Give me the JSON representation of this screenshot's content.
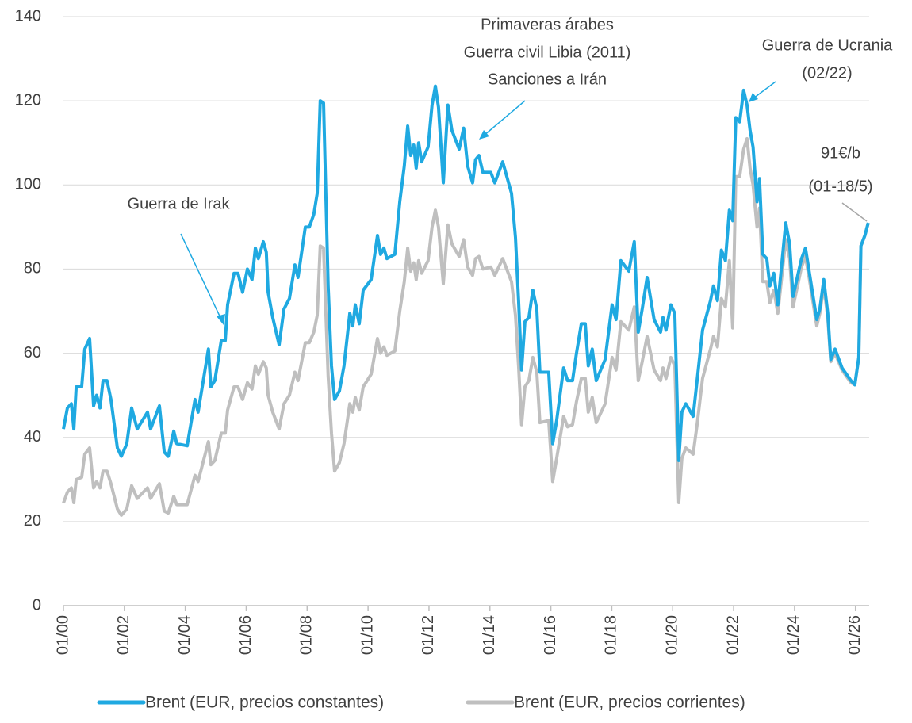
{
  "chart_data": {
    "type": "line",
    "x": [
      2000.0,
      2000.13,
      2000.26,
      2000.34,
      2000.42,
      2000.6,
      2000.7,
      2000.86,
      2000.99,
      2001.09,
      2001.2,
      2001.3,
      2001.43,
      2001.56,
      2001.77,
      2001.9,
      2002.08,
      2002.24,
      2002.42,
      2002.76,
      2002.86,
      2003.15,
      2003.31,
      2003.44,
      2003.62,
      2003.72,
      2004.06,
      2004.32,
      2004.42,
      2004.58,
      2004.76,
      2004.84,
      2004.97,
      2005.18,
      2005.31,
      2005.39,
      2005.6,
      2005.73,
      2005.88,
      2006.04,
      2006.19,
      2006.3,
      2006.4,
      2006.56,
      2006.66,
      2006.72,
      2006.87,
      2007.08,
      2007.24,
      2007.42,
      2007.6,
      2007.7,
      2007.94,
      2008.07,
      2008.22,
      2008.33,
      2008.43,
      2008.54,
      2008.69,
      2008.8,
      2008.9,
      2009.06,
      2009.21,
      2009.4,
      2009.5,
      2009.58,
      2009.71,
      2009.84,
      2010.1,
      2010.31,
      2010.41,
      2010.52,
      2010.62,
      2010.88,
      2011.04,
      2011.19,
      2011.3,
      2011.4,
      2011.5,
      2011.58,
      2011.66,
      2011.76,
      2011.97,
      2012.1,
      2012.21,
      2012.31,
      2012.47,
      2012.62,
      2012.75,
      2012.99,
      2013.14,
      2013.27,
      2013.43,
      2013.53,
      2013.64,
      2013.77,
      2014.03,
      2014.16,
      2014.42,
      2014.71,
      2014.84,
      2014.94,
      2015.04,
      2015.15,
      2015.28,
      2015.41,
      2015.54,
      2015.64,
      2015.93,
      2016.06,
      2016.19,
      2016.42,
      2016.55,
      2016.71,
      2016.84,
      2017.0,
      2017.13,
      2017.23,
      2017.36,
      2017.49,
      2017.78,
      2018.01,
      2018.14,
      2018.3,
      2018.56,
      2018.74,
      2018.87,
      2019.0,
      2019.16,
      2019.39,
      2019.6,
      2019.68,
      2019.78,
      2019.94,
      2020.07,
      2020.2,
      2020.3,
      2020.43,
      2020.67,
      2020.8,
      2020.98,
      2021.24,
      2021.34,
      2021.47,
      2021.6,
      2021.73,
      2021.86,
      2021.97,
      2022.07,
      2022.2,
      2022.33,
      2022.44,
      2022.54,
      2022.64,
      2022.77,
      2022.85,
      2022.96,
      2023.09,
      2023.19,
      2023.32,
      2023.45,
      2023.71,
      2023.84,
      2023.95,
      2024.23,
      2024.36,
      2024.49,
      2024.73,
      2024.83,
      2024.96,
      2025.09,
      2025.19,
      2025.33,
      2025.56,
      2025.85,
      2025.98,
      2026.11,
      2026.18,
      2026.31,
      2026.42
    ],
    "series": [
      {
        "name": "Brent (EUR, precios constantes)",
        "color": "#1fa9e1",
        "values": [
          42,
          47,
          48,
          42,
          52,
          52,
          61,
          63.5,
          47.5,
          50,
          47,
          53.5,
          53.5,
          49,
          37.5,
          35.5,
          38.5,
          47,
          42,
          46,
          42,
          47.5,
          36.5,
          35.5,
          41.5,
          38.5,
          38,
          49,
          46,
          53,
          61,
          52,
          53.5,
          63,
          63,
          71.5,
          79,
          79,
          74.5,
          80,
          77.5,
          85,
          82.5,
          86.5,
          84,
          74.5,
          68.5,
          62,
          70.5,
          73,
          81,
          78,
          90,
          90,
          93,
          98,
          120,
          119.5,
          76,
          57,
          49,
          51,
          57,
          69.5,
          66.5,
          71.5,
          67,
          75,
          77.5,
          88,
          83.5,
          85,
          82.5,
          83.5,
          96,
          104.5,
          114,
          107,
          109.5,
          104,
          110,
          105.5,
          109,
          119,
          123.5,
          118.5,
          100.5,
          119,
          113,
          108.5,
          113.5,
          104.5,
          100.5,
          106,
          107,
          103,
          103,
          100.5,
          105.5,
          98,
          87.5,
          72.5,
          56,
          67.5,
          68.5,
          75,
          70.5,
          55.5,
          55.5,
          38.5,
          44,
          56.5,
          53.5,
          53.5,
          60,
          67,
          67,
          57,
          61,
          53.5,
          58.5,
          71.5,
          68,
          82,
          79.5,
          86.5,
          65,
          70.5,
          78,
          68,
          65,
          68.5,
          65.5,
          71.5,
          69.5,
          34.5,
          46,
          48,
          45,
          53.5,
          65.5,
          72.5,
          76,
          72.5,
          84.5,
          82,
          94,
          91.5,
          116,
          115,
          122.5,
          119,
          113,
          109,
          96,
          101.5,
          83.5,
          82.5,
          76,
          79,
          71.5,
          91,
          86,
          73.5,
          82.5,
          85,
          79,
          68,
          70.5,
          77.5,
          69.5,
          58.5,
          61,
          56.5,
          53.5,
          52.5,
          59,
          85.5,
          88,
          91
        ]
      },
      {
        "name": "Brent (EUR, precios corrientes)",
        "color": "#bfbfbf",
        "values": [
          24.4,
          27,
          28,
          24.5,
          30,
          30.5,
          36,
          37.5,
          28,
          29.5,
          28,
          32,
          32,
          29,
          23,
          21.5,
          23,
          28.5,
          25.5,
          28,
          25.5,
          29,
          22.5,
          22,
          26,
          24,
          24,
          31,
          29.5,
          34,
          39,
          33.5,
          34.5,
          41,
          41,
          46.5,
          52,
          52,
          49,
          53,
          51.5,
          57,
          55,
          58,
          56.5,
          50,
          46,
          42,
          48,
          50,
          55.5,
          53.5,
          62.5,
          62.5,
          65,
          69,
          85.5,
          85,
          54.5,
          41,
          32,
          34,
          38.5,
          48,
          46,
          49.5,
          46.5,
          52,
          55,
          63.5,
          60,
          61.5,
          59.5,
          60.5,
          70,
          77,
          85,
          79.5,
          81.5,
          77.5,
          82,
          79,
          82,
          90,
          94,
          90,
          76.5,
          90.5,
          86,
          83,
          87,
          80.5,
          78.5,
          82.5,
          83,
          80,
          80.5,
          78.5,
          82.5,
          77,
          69,
          57,
          43,
          52,
          53.5,
          59,
          55.5,
          43.5,
          44,
          29.5,
          35,
          45,
          42.5,
          43,
          48.5,
          54,
          54,
          46,
          49.5,
          43.5,
          48,
          59,
          56,
          67.5,
          65.5,
          71,
          53.5,
          58,
          64,
          56,
          53.5,
          56.5,
          54,
          59,
          57,
          24.5,
          35,
          37.5,
          36,
          43,
          54,
          61,
          64,
          61.5,
          73,
          71,
          82,
          66,
          102,
          102,
          108.5,
          111,
          104,
          100,
          90,
          94.5,
          77,
          77,
          72,
          75,
          69.5,
          87,
          82.5,
          71,
          80.5,
          83,
          77.5,
          66.5,
          69.5,
          76,
          68.5,
          58,
          60,
          56,
          53,
          52.5,
          59,
          85.5,
          88,
          91
        ]
      }
    ],
    "xlim": [
      2000,
      2026.45
    ],
    "xticks": [
      {
        "value": 2000,
        "label": "01/00"
      },
      {
        "value": 2002,
        "label": "01/02"
      },
      {
        "value": 2004,
        "label": "01/04"
      },
      {
        "value": 2006,
        "label": "01/06"
      },
      {
        "value": 2008,
        "label": "01/08"
      },
      {
        "value": 2010,
        "label": "01/10"
      },
      {
        "value": 2012,
        "label": "01/12"
      },
      {
        "value": 2014,
        "label": "01/14"
      },
      {
        "value": 2016,
        "label": "01/16"
      },
      {
        "value": 2018,
        "label": "01/18"
      },
      {
        "value": 2020,
        "label": "01/20"
      },
      {
        "value": 2022,
        "label": "01/22"
      },
      {
        "value": 2024,
        "label": "01/24"
      },
      {
        "value": 2026,
        "label": "01/26"
      }
    ],
    "ylim": [
      0,
      140
    ],
    "yticks": [
      0,
      20,
      40,
      60,
      80,
      100,
      120,
      140
    ],
    "grid": true,
    "legend": "bottom",
    "annotations": [
      "Guerra de Irak",
      "Primaveras árabes",
      "Guerra civil Libia (2011)",
      "Sanciones a Irán",
      "Guerra de Ucrania",
      "(02/22)",
      "91€/b",
      "(01-18/5)"
    ]
  }
}
